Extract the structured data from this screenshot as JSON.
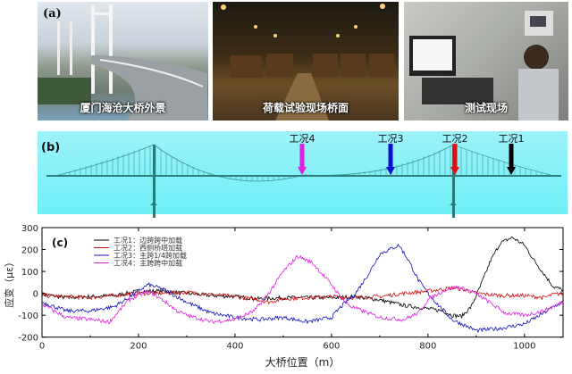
{
  "panel_a": {
    "label": "(a)",
    "photos": [
      {
        "caption": "厦门海沧大桥外景"
      },
      {
        "caption": "荷载试验现场桥面"
      },
      {
        "caption": "测试现场"
      }
    ]
  },
  "panel_b": {
    "label": "(b)",
    "load_cases": [
      {
        "label": "工况4",
        "color": "#e020e0"
      },
      {
        "label": "工况3",
        "color": "#1010d0"
      },
      {
        "label": "工况2",
        "color": "#e01010"
      },
      {
        "label": "工况1",
        "color": "#000000"
      }
    ]
  },
  "chart_data": {
    "type": "line",
    "panel_label": "(c)",
    "xlabel": "大桥位置（m）",
    "ylabel": "应变（με）",
    "xlim": [
      0,
      1080
    ],
    "ylim": [
      -200,
      300
    ],
    "xticks": [
      0,
      200,
      400,
      600,
      800,
      1000
    ],
    "yticks": [
      -200,
      -100,
      0,
      100,
      200,
      300
    ],
    "legend_position": "top-left",
    "grid": false,
    "series": [
      {
        "name": "工况1：边跨跨中加载",
        "color": "#000000",
        "x": [
          0,
          50,
          100,
          150,
          200,
          250,
          300,
          350,
          400,
          450,
          500,
          550,
          600,
          650,
          700,
          750,
          800,
          830,
          850,
          870,
          890,
          910,
          930,
          950,
          975,
          1000,
          1020,
          1040,
          1060,
          1080
        ],
        "y": [
          -5,
          -20,
          -15,
          -10,
          10,
          10,
          0,
          -10,
          -15,
          -25,
          -20,
          -20,
          -20,
          -15,
          -30,
          -55,
          -70,
          -80,
          -100,
          -105,
          -60,
          40,
          150,
          230,
          255,
          220,
          150,
          90,
          30,
          15
        ]
      },
      {
        "name": "工况2：西侧桥塔加载",
        "color": "#d01010",
        "x": [
          0,
          50,
          100,
          150,
          200,
          250,
          300,
          350,
          400,
          450,
          470,
          500,
          550,
          600,
          650,
          700,
          750,
          800,
          850,
          880,
          900,
          950,
          1000,
          1040,
          1060,
          1080
        ],
        "y": [
          -10,
          -15,
          -20,
          -10,
          0,
          0,
          5,
          -5,
          -15,
          -30,
          -40,
          -25,
          -20,
          -15,
          -20,
          -15,
          0,
          10,
          25,
          15,
          0,
          -10,
          -10,
          -20,
          -5,
          0
        ]
      },
      {
        "name": "工况3：主跨1/4跨加载",
        "color": "#1010c0",
        "x": [
          0,
          50,
          100,
          150,
          180,
          220,
          250,
          300,
          350,
          400,
          450,
          500,
          550,
          600,
          620,
          650,
          680,
          700,
          720,
          740,
          760,
          780,
          800,
          820,
          850,
          880,
          900,
          950,
          1000,
          1040,
          1060,
          1080
        ],
        "y": [
          -40,
          -80,
          -80,
          -60,
          -20,
          40,
          20,
          -40,
          -90,
          -110,
          -120,
          -110,
          -130,
          -110,
          -60,
          0,
          100,
          180,
          200,
          220,
          150,
          60,
          0,
          -50,
          -120,
          -150,
          -170,
          -160,
          -140,
          -90,
          -60,
          -40
        ]
      },
      {
        "name": "工况4：主跨跨中加载",
        "color": "#e020e0",
        "x": [
          0,
          50,
          100,
          140,
          180,
          220,
          250,
          280,
          300,
          350,
          400,
          440,
          470,
          500,
          530,
          560,
          600,
          620,
          640,
          700,
          750,
          780,
          800,
          830,
          860,
          890,
          920,
          960,
          1000,
          1040,
          1080
        ],
        "y": [
          -50,
          -110,
          -120,
          -130,
          -30,
          10,
          -30,
          -80,
          -100,
          -130,
          -120,
          -80,
          0,
          100,
          170,
          140,
          40,
          -20,
          -60,
          -110,
          -120,
          -90,
          -30,
          10,
          30,
          10,
          -30,
          -90,
          -100,
          -80,
          -40
        ]
      }
    ]
  }
}
